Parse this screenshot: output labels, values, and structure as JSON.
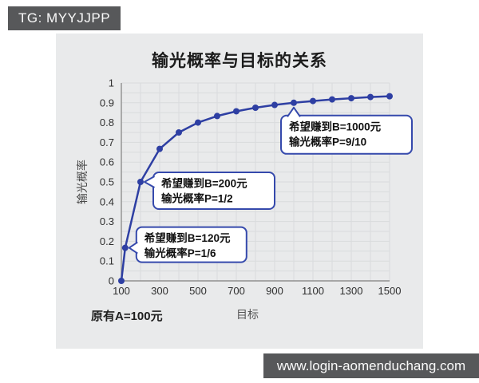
{
  "watermarks": {
    "telegram_badge": "TG: MYYJJPP",
    "website": "www.login-aomenduchang.com"
  },
  "colors": {
    "series_blue": "#2e3fa3",
    "annotation_border": "#3549ac",
    "card_bg": "#e9eaeb",
    "grid_line": "#d9dbdd",
    "axis_line": "#8f8f8f",
    "watermark_bg": "#57585a",
    "tick_text": "#2f2f2f"
  },
  "chart_data": {
    "type": "line",
    "title": "输光概率与目标的关系",
    "xlabel": "目标",
    "ylabel": "输光概率",
    "footnote": "原有A=100元",
    "xlim": [
      100,
      1500
    ],
    "ylim": [
      0,
      1
    ],
    "x_ticks": [
      100,
      300,
      500,
      700,
      900,
      1100,
      1300,
      1500
    ],
    "y_ticks": [
      0,
      0.1,
      0.2,
      0.3,
      0.4,
      0.5,
      0.6,
      0.7,
      0.8,
      0.9,
      1
    ],
    "grid": "on",
    "legend": "none",
    "series": [
      {
        "name": "输光概率",
        "points": [
          {
            "x": 100,
            "y": 0
          },
          {
            "x": 120,
            "y": 0.167
          },
          {
            "x": 200,
            "y": 0.5
          },
          {
            "x": 300,
            "y": 0.667
          },
          {
            "x": 400,
            "y": 0.75
          },
          {
            "x": 500,
            "y": 0.8
          },
          {
            "x": 600,
            "y": 0.833
          },
          {
            "x": 700,
            "y": 0.857
          },
          {
            "x": 800,
            "y": 0.875
          },
          {
            "x": 900,
            "y": 0.889
          },
          {
            "x": 1000,
            "y": 0.9
          },
          {
            "x": 1100,
            "y": 0.909
          },
          {
            "x": 1200,
            "y": 0.917
          },
          {
            "x": 1300,
            "y": 0.923
          },
          {
            "x": 1400,
            "y": 0.929
          },
          {
            "x": 1500,
            "y": 0.933
          }
        ]
      }
    ],
    "annotations": [
      {
        "x": 120,
        "y": 0.167,
        "lines": [
          "希望赚到B=120元",
          "输光概率P=1/6"
        ]
      },
      {
        "x": 200,
        "y": 0.5,
        "lines": [
          "希望赚到B=200元",
          "输光概率P=1/2"
        ]
      },
      {
        "x": 1000,
        "y": 0.9,
        "lines": [
          "希望赚到B=1000元",
          "输光概率P=9/10"
        ]
      }
    ]
  }
}
